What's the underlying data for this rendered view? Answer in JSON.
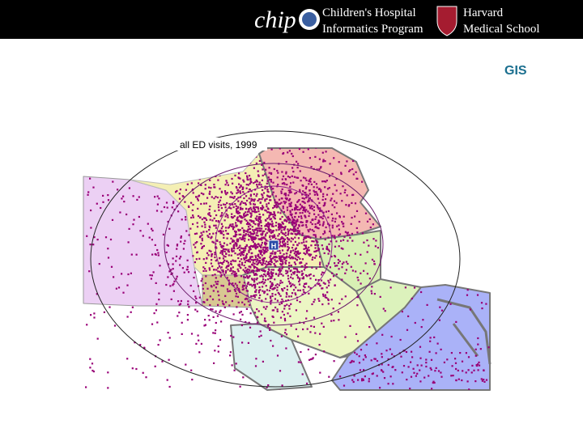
{
  "header": {
    "logo": "chip",
    "org": [
      "Children's Hospital",
      "Informatics Program"
    ],
    "school": [
      "Harvard",
      "Medical School"
    ]
  },
  "title": "GIS",
  "map": {
    "caption": "all ED visits, 1999",
    "marker": "H"
  }
}
